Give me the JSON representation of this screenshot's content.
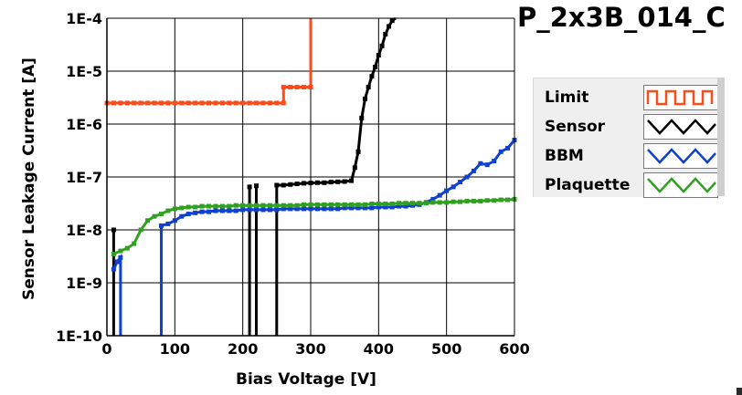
{
  "chart_data": {
    "type": "line",
    "title": "P_2x3B_014_C",
    "xlabel": "Bias Voltage [V]",
    "ylabel": "Sensor Leakage Current [A]",
    "xlim": [
      0,
      600
    ],
    "ylim": [
      1e-10,
      0.0001
    ],
    "yscale": "log",
    "grid": true,
    "legend_position": "right",
    "x_ticks": [
      0,
      100,
      200,
      300,
      400,
      500,
      600
    ],
    "x_tick_labels": [
      "0",
      "100",
      "200",
      "300",
      "400",
      "500",
      "600"
    ],
    "y_ticks": [
      1e-10,
      1e-09,
      1e-08,
      1e-07,
      1e-06,
      1e-05,
      0.0001
    ],
    "y_tick_labels": [
      "1E-10",
      "1E-9",
      "1E-8",
      "1E-7",
      "1E-6",
      "1E-5",
      "1E-4"
    ],
    "series": [
      {
        "name": "Limit",
        "color": "#ff4a1a",
        "step": true,
        "points": [
          [
            0,
            2.5e-06
          ],
          [
            10,
            2.5e-06
          ],
          [
            20,
            2.5e-06
          ],
          [
            30,
            2.5e-06
          ],
          [
            40,
            2.5e-06
          ],
          [
            50,
            2.5e-06
          ],
          [
            60,
            2.5e-06
          ],
          [
            70,
            2.5e-06
          ],
          [
            80,
            2.5e-06
          ],
          [
            90,
            2.5e-06
          ],
          [
            100,
            2.5e-06
          ],
          [
            110,
            2.5e-06
          ],
          [
            120,
            2.5e-06
          ],
          [
            130,
            2.5e-06
          ],
          [
            140,
            2.5e-06
          ],
          [
            150,
            2.5e-06
          ],
          [
            160,
            2.5e-06
          ],
          [
            170,
            2.5e-06
          ],
          [
            180,
            2.5e-06
          ],
          [
            190,
            2.5e-06
          ],
          [
            200,
            2.5e-06
          ],
          [
            210,
            2.5e-06
          ],
          [
            220,
            2.5e-06
          ],
          [
            230,
            2.5e-06
          ],
          [
            240,
            2.5e-06
          ],
          [
            250,
            2.5e-06
          ],
          [
            260,
            5e-06
          ],
          [
            270,
            5e-06
          ],
          [
            280,
            5e-06
          ],
          [
            290,
            5e-06
          ],
          [
            300,
            5e-06
          ],
          [
            300,
            0.0001
          ]
        ]
      },
      {
        "name": "Sensor",
        "color": "#000000",
        "segments": [
          [
            [
              10,
              1e-10
            ],
            [
              10,
              1e-08
            ]
          ],
          [
            [
              210,
              1e-10
            ],
            [
              210,
              6.5e-08
            ]
          ],
          [
            [
              220,
              1e-10
            ],
            [
              220,
              6.8e-08
            ]
          ],
          [
            [
              250,
              1e-10
            ],
            [
              250,
              7e-08
            ],
            [
              260,
              7e-08
            ],
            [
              270,
              7.2e-08
            ],
            [
              280,
              7.4e-08
            ],
            [
              290,
              7.6e-08
            ],
            [
              300,
              7.7e-08
            ],
            [
              310,
              7.8e-08
            ],
            [
              320,
              7.8e-08
            ],
            [
              330,
              8e-08
            ],
            [
              340,
              8.1e-08
            ],
            [
              350,
              8.2e-08
            ],
            [
              360,
              8.5e-08
            ],
            [
              365,
              1.5e-07
            ],
            [
              370,
              3e-07
            ],
            [
              375,
              1.3e-06
            ],
            [
              380,
              3e-06
            ],
            [
              385,
              5e-06
            ],
            [
              390,
              8e-06
            ],
            [
              395,
              1.2e-05
            ],
            [
              400,
              2e-05
            ],
            [
              405,
              3e-05
            ],
            [
              410,
              5e-05
            ],
            [
              415,
              7e-05
            ],
            [
              420,
              9e-05
            ],
            [
              425,
              0.0001
            ]
          ]
        ]
      },
      {
        "name": "BBM",
        "color": "#1040d0",
        "segments": [
          [
            [
              10,
              1.8e-09
            ],
            [
              15,
              2.5e-09
            ],
            [
              20,
              3e-09
            ],
            [
              20,
              1e-10
            ]
          ],
          [
            [
              80,
              1e-10
            ],
            [
              80,
              1.2e-08
            ],
            [
              90,
              1.3e-08
            ],
            [
              100,
              1.5e-08
            ],
            [
              110,
              1.8e-08
            ],
            [
              120,
              2e-08
            ],
            [
              130,
              2.1e-08
            ],
            [
              140,
              2.2e-08
            ],
            [
              150,
              2.2e-08
            ],
            [
              160,
              2.3e-08
            ],
            [
              170,
              2.3e-08
            ],
            [
              180,
              2.3e-08
            ],
            [
              190,
              2.3e-08
            ],
            [
              200,
              2.4e-08
            ],
            [
              210,
              2.4e-08
            ],
            [
              220,
              2.4e-08
            ],
            [
              230,
              2.4e-08
            ],
            [
              240,
              2.4e-08
            ],
            [
              250,
              2.4e-08
            ],
            [
              260,
              2.5e-08
            ],
            [
              270,
              2.5e-08
            ],
            [
              280,
              2.5e-08
            ],
            [
              290,
              2.5e-08
            ],
            [
              300,
              2.5e-08
            ],
            [
              310,
              2.5e-08
            ],
            [
              320,
              2.5e-08
            ],
            [
              330,
              2.5e-08
            ],
            [
              340,
              2.5e-08
            ],
            [
              350,
              2.6e-08
            ],
            [
              360,
              2.6e-08
            ],
            [
              370,
              2.6e-08
            ],
            [
              380,
              2.6e-08
            ],
            [
              390,
              2.6e-08
            ],
            [
              400,
              2.7e-08
            ],
            [
              410,
              2.7e-08
            ],
            [
              420,
              2.7e-08
            ],
            [
              430,
              2.8e-08
            ],
            [
              440,
              2.8e-08
            ],
            [
              450,
              2.9e-08
            ],
            [
              460,
              3e-08
            ],
            [
              470,
              3.3e-08
            ],
            [
              480,
              3.8e-08
            ],
            [
              490,
              4.5e-08
            ],
            [
              500,
              5.5e-08
            ],
            [
              510,
              6.5e-08
            ],
            [
              520,
              8e-08
            ],
            [
              530,
              1e-07
            ],
            [
              540,
              1.3e-07
            ],
            [
              550,
              1.8e-07
            ],
            [
              560,
              1.7e-07
            ],
            [
              570,
              2e-07
            ],
            [
              580,
              3e-07
            ],
            [
              590,
              3.5e-07
            ],
            [
              600,
              5e-07
            ]
          ]
        ]
      },
      {
        "name": "Plaquette",
        "color": "#30a020",
        "segments": [
          [
            [
              10,
              3.5e-09
            ],
            [
              20,
              4e-09
            ],
            [
              30,
              4.5e-09
            ],
            [
              40,
              5.5e-09
            ],
            [
              50,
              1e-08
            ],
            [
              60,
              1.5e-08
            ],
            [
              70,
              1.8e-08
            ],
            [
              80,
              2e-08
            ],
            [
              90,
              2.3e-08
            ],
            [
              100,
              2.5e-08
            ],
            [
              110,
              2.6e-08
            ],
            [
              120,
              2.7e-08
            ],
            [
              130,
              2.7e-08
            ],
            [
              140,
              2.8e-08
            ],
            [
              150,
              2.8e-08
            ],
            [
              160,
              2.8e-08
            ],
            [
              170,
              2.8e-08
            ],
            [
              180,
              2.8e-08
            ],
            [
              190,
              2.9e-08
            ],
            [
              200,
              2.9e-08
            ],
            [
              210,
              2.9e-08
            ],
            [
              220,
              2.9e-08
            ],
            [
              230,
              2.9e-08
            ],
            [
              240,
              2.9e-08
            ],
            [
              250,
              2.9e-08
            ],
            [
              260,
              2.9e-08
            ],
            [
              270,
              2.9e-08
            ],
            [
              280,
              2.9e-08
            ],
            [
              290,
              3e-08
            ],
            [
              300,
              3e-08
            ],
            [
              310,
              3e-08
            ],
            [
              320,
              3e-08
            ],
            [
              330,
              3e-08
            ],
            [
              340,
              3e-08
            ],
            [
              350,
              3e-08
            ],
            [
              360,
              3e-08
            ],
            [
              370,
              3e-08
            ],
            [
              380,
              3e-08
            ],
            [
              390,
              3.1e-08
            ],
            [
              400,
              3.1e-08
            ],
            [
              410,
              3.1e-08
            ],
            [
              420,
              3.1e-08
            ],
            [
              430,
              3.2e-08
            ],
            [
              440,
              3.2e-08
            ],
            [
              450,
              3.2e-08
            ],
            [
              460,
              3.2e-08
            ],
            [
              470,
              3.2e-08
            ],
            [
              480,
              3.3e-08
            ],
            [
              490,
              3.3e-08
            ],
            [
              500,
              3.3e-08
            ],
            [
              510,
              3.4e-08
            ],
            [
              520,
              3.4e-08
            ],
            [
              530,
              3.5e-08
            ],
            [
              540,
              3.5e-08
            ],
            [
              550,
              3.5e-08
            ],
            [
              560,
              3.6e-08
            ],
            [
              570,
              3.6e-08
            ],
            [
              580,
              3.7e-08
            ],
            [
              590,
              3.7e-08
            ],
            [
              600,
              3.8e-08
            ]
          ]
        ]
      }
    ]
  },
  "legend": {
    "items": [
      {
        "label": "Limit",
        "color": "#ff4a1a",
        "swatch": "square-wave"
      },
      {
        "label": "Sensor",
        "color": "#000000",
        "swatch": "zigzag"
      },
      {
        "label": "BBM",
        "color": "#1040d0",
        "swatch": "zigzag"
      },
      {
        "label": "Plaquette",
        "color": "#30a020",
        "swatch": "zigzag"
      }
    ]
  }
}
